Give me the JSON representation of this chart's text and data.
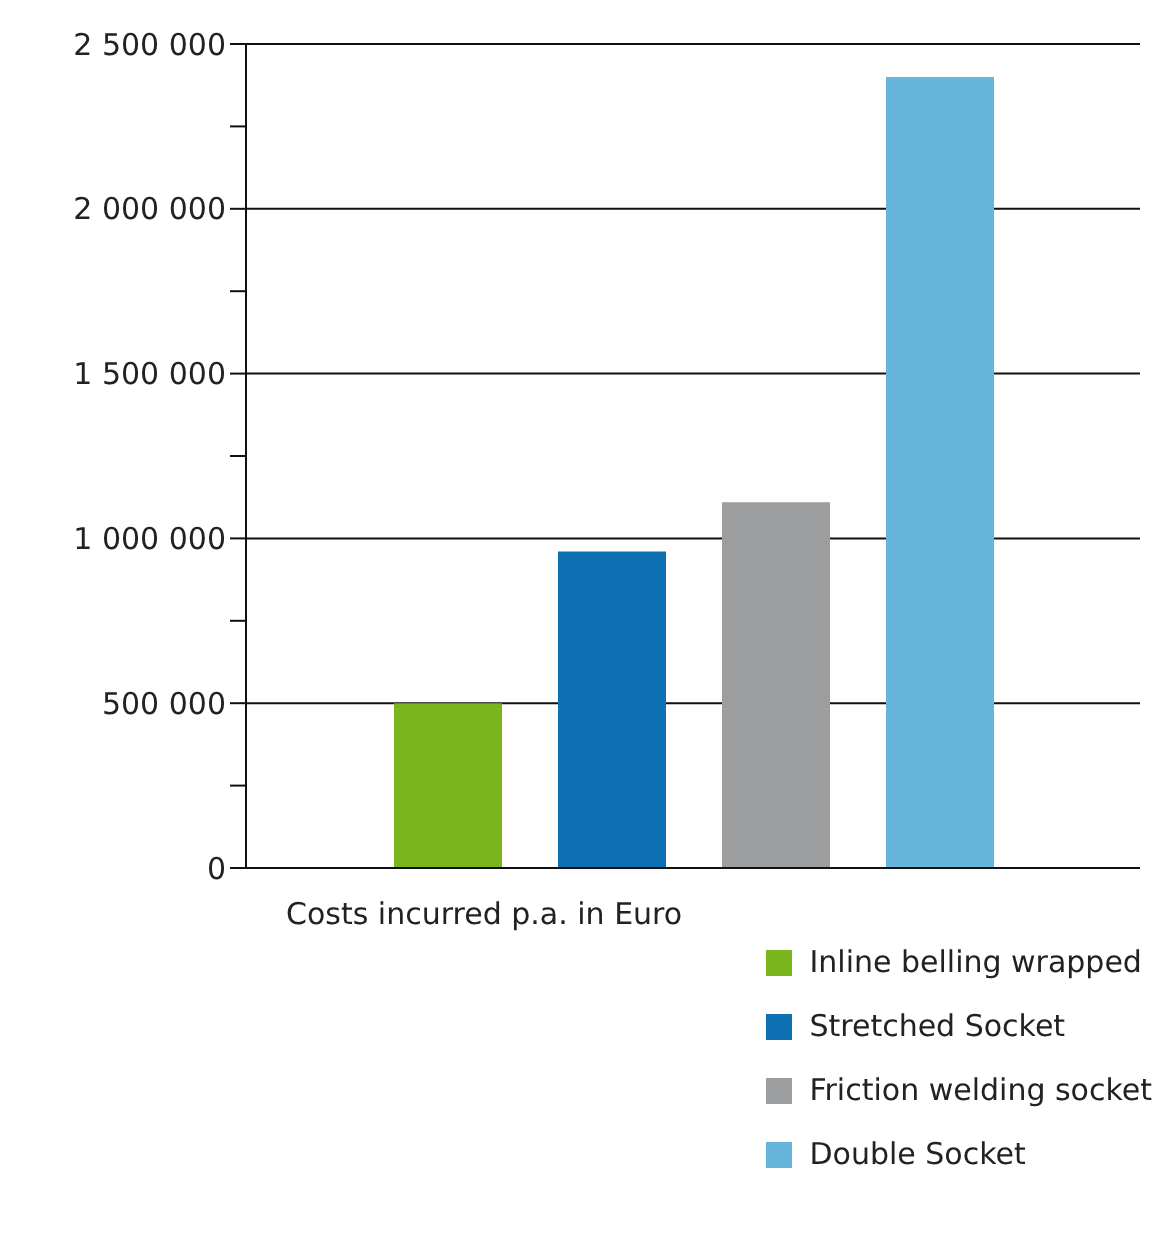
{
  "chart_data": {
    "type": "bar",
    "xlabel": "Costs incurred p.a. in Euro",
    "categories": [
      null
    ],
    "series": [
      {
        "name": "Inline belling wrapped",
        "color": "#7ab51d",
        "values": [
          500000
        ]
      },
      {
        "name": "Stretched Socket",
        "color": "#0d70b3",
        "values": [
          960000
        ]
      },
      {
        "name": "Friction welding socket",
        "color": "#9c9d9f",
        "values": [
          1110000
        ]
      },
      {
        "name": "Double Socket",
        "color": "#66b6dc",
        "values": [
          2400000
        ]
      }
    ],
    "ylim": [
      0,
      2500000
    ],
    "yticks": [
      0,
      {
        "value": 250000,
        "label": null
      },
      {
        "value": 500000,
        "label": "500 000"
      },
      {
        "value": 750000,
        "label": null
      },
      {
        "value": 1000000,
        "label": "1 000 000"
      },
      {
        "value": 1250000,
        "label": null
      },
      {
        "value": 1500000,
        "label": "1 500 000"
      },
      {
        "value": 1750000,
        "label": null
      },
      {
        "value": 2000000,
        "label": "2 000 000"
      },
      {
        "value": 2250000,
        "label": null
      },
      {
        "value": 2500000,
        "label": "2 500 000"
      }
    ],
    "grid": "y",
    "legend": "bottom right"
  }
}
